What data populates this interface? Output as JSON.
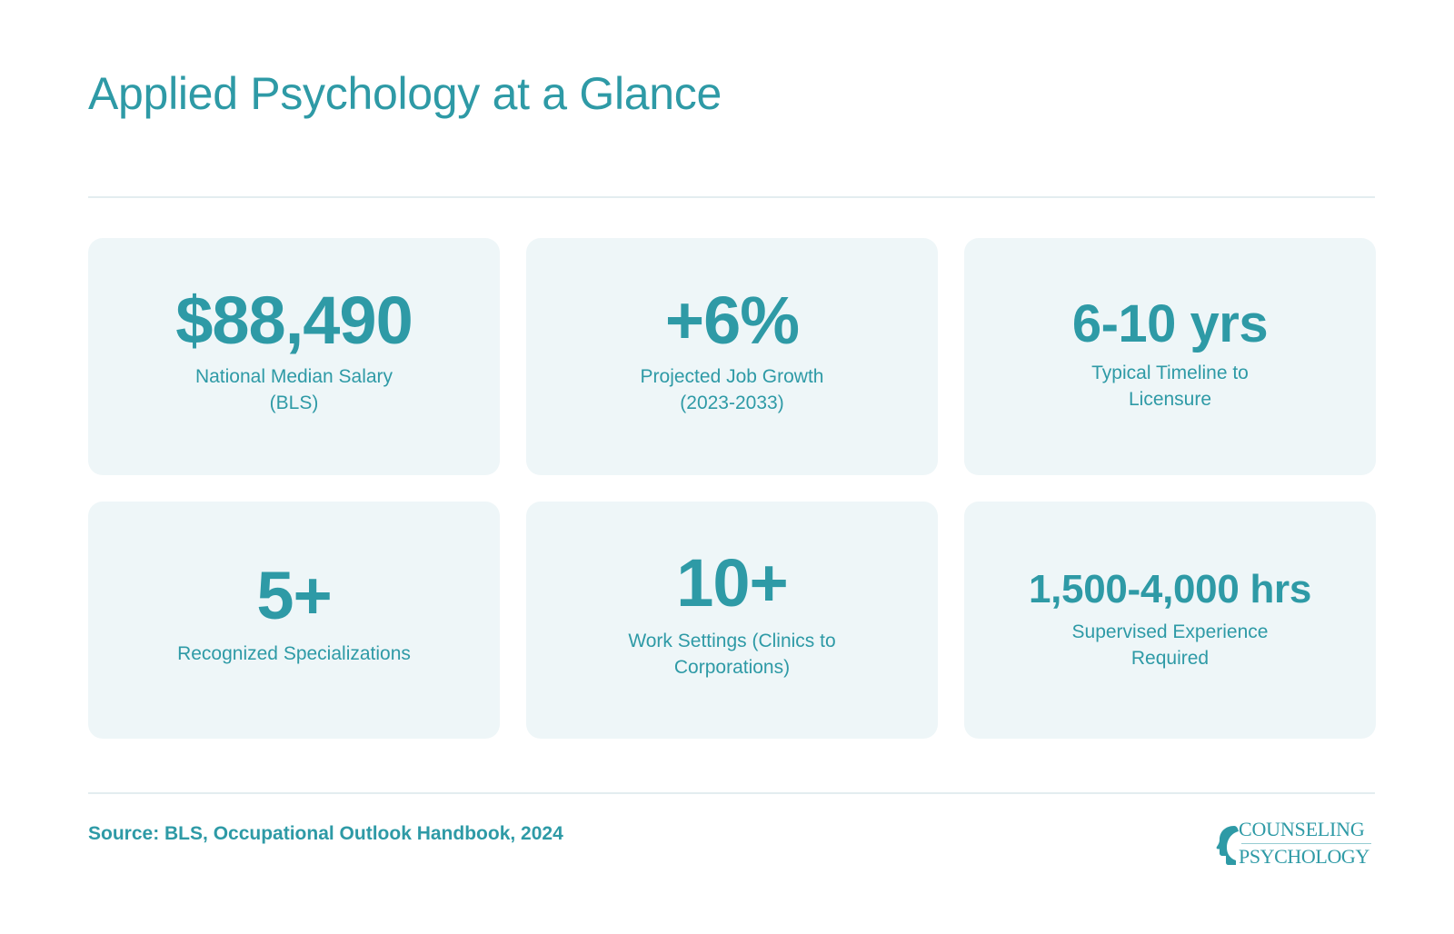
{
  "header": {
    "title": "Applied Psychology at a Glance"
  },
  "stats": [
    {
      "value": "$88,490",
      "label": "National Median Salary (BLS)"
    },
    {
      "value": "+6%",
      "label": "Projected Job Growth (2023-2033)"
    },
    {
      "value": "6-10 yrs",
      "label": "Typical Timeline to Licensure"
    },
    {
      "value": "5+",
      "label": "Recognized Specializations"
    },
    {
      "value": "10+",
      "label": "Work Settings (Clinics to Corporations)"
    },
    {
      "value": "1,500-4,000 hrs",
      "label": "Supervised Experience Required"
    }
  ],
  "footer": {
    "source": "Source: BLS, Occupational Outlook Handbook, 2024"
  },
  "brand": {
    "line1": "COUNSELING",
    "line2": "PSYCHOLOGY",
    "icon": "head-silhouette-icon",
    "color": "#2e9aa6"
  },
  "colors": {
    "accent": "#2e9aa6",
    "card_background": "#eef6f8",
    "divider": "#e3edf0"
  }
}
